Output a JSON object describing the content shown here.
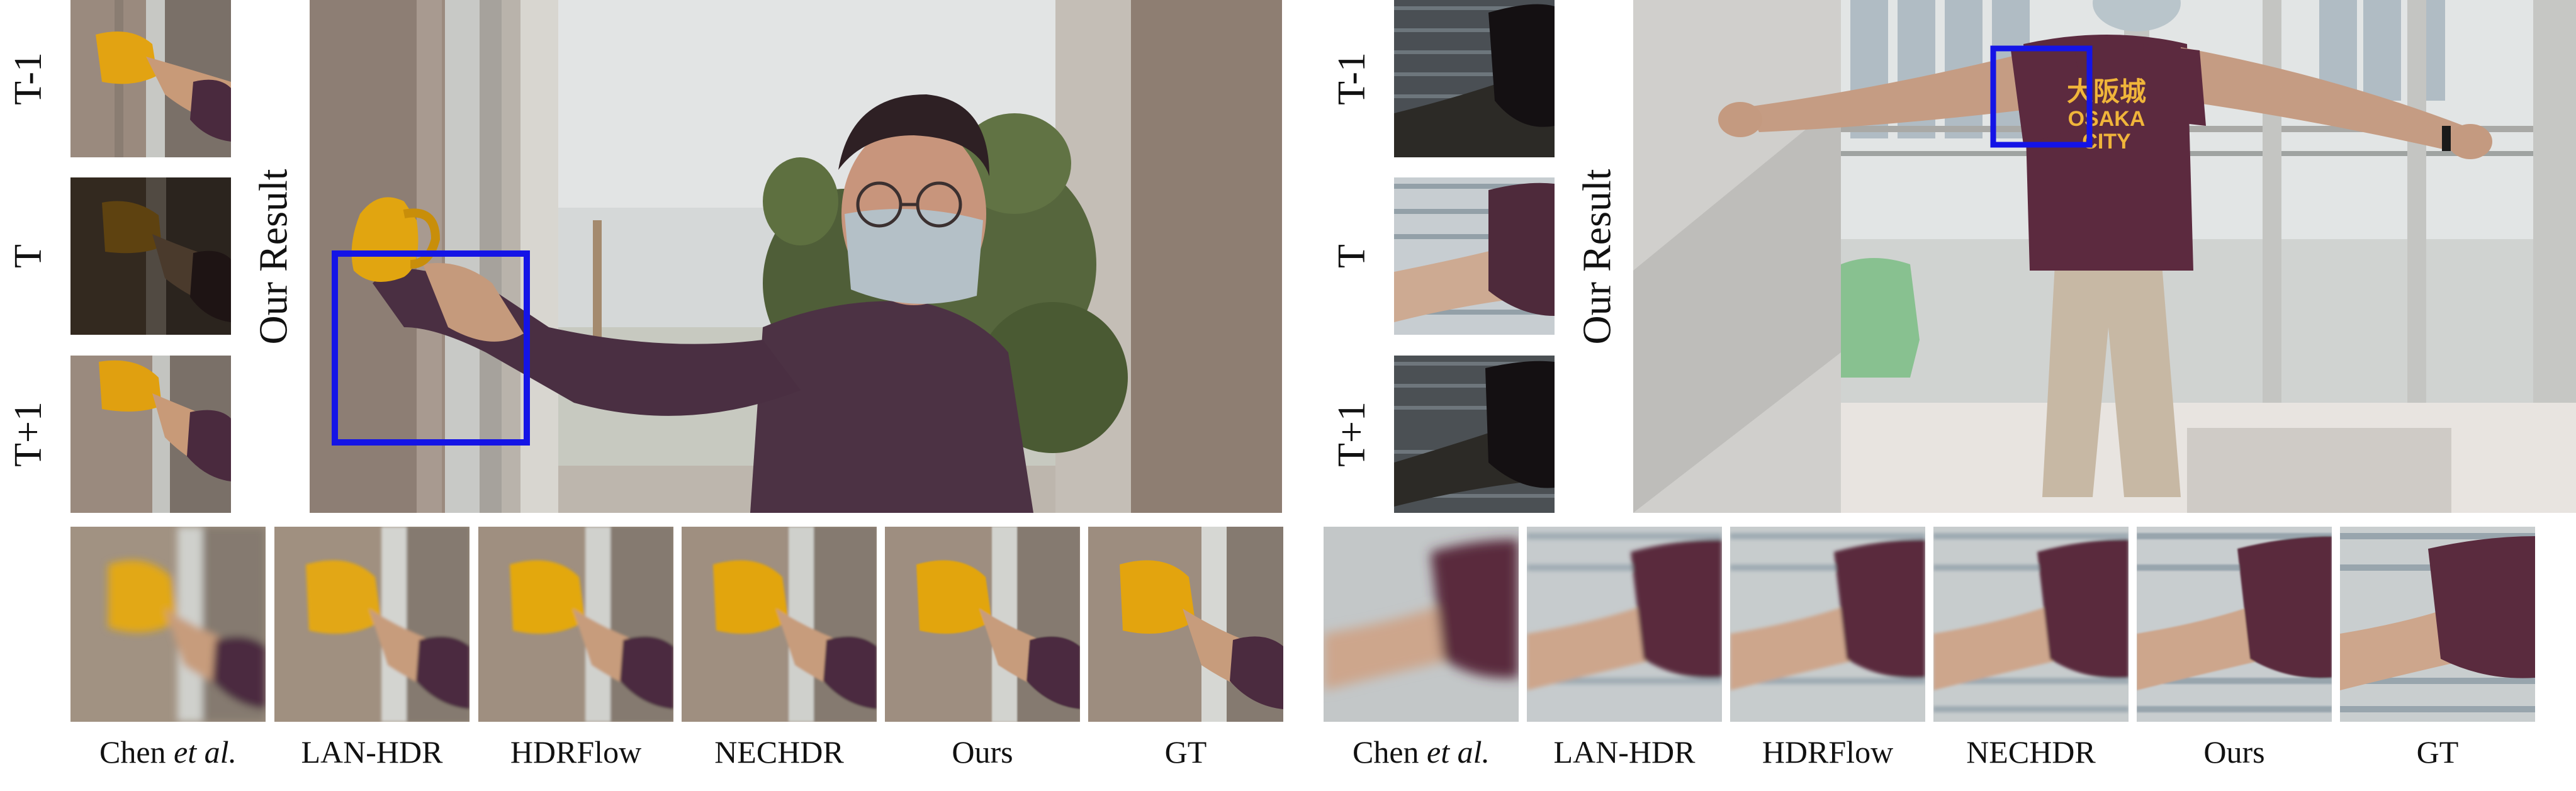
{
  "figure": {
    "left": {
      "frame_labels": [
        "T-1",
        "T",
        "T+1"
      ],
      "result_label": "Our Result",
      "methods": [
        {
          "name": "Chen",
          "suffix": " et al."
        },
        {
          "name": "LAN-HDR",
          "suffix": ""
        },
        {
          "name": "HDRFlow",
          "suffix": ""
        },
        {
          "name": "NECHDR",
          "suffix": ""
        },
        {
          "name": "Ours",
          "suffix": ""
        },
        {
          "name": "GT",
          "suffix": ""
        }
      ]
    },
    "right": {
      "frame_labels": [
        "T-1",
        "T",
        "T+1"
      ],
      "result_label": "Our Result",
      "shirt_text": [
        "大阪城",
        "OSAKA",
        "CITY"
      ],
      "methods": [
        {
          "name": "Chen",
          "suffix": " et al."
        },
        {
          "name": "LAN-HDR",
          "suffix": ""
        },
        {
          "name": "HDRFlow",
          "suffix": ""
        },
        {
          "name": "NECHDR",
          "suffix": ""
        },
        {
          "name": "Ours",
          "suffix": ""
        },
        {
          "name": "GT",
          "suffix": ""
        }
      ]
    },
    "colors": {
      "highlight_box": "#1414e6",
      "mug": "#e0a410",
      "sleeve": "#4a2a3e",
      "shirt": "#5c2a3f",
      "wall": "#9b8a7e"
    }
  }
}
